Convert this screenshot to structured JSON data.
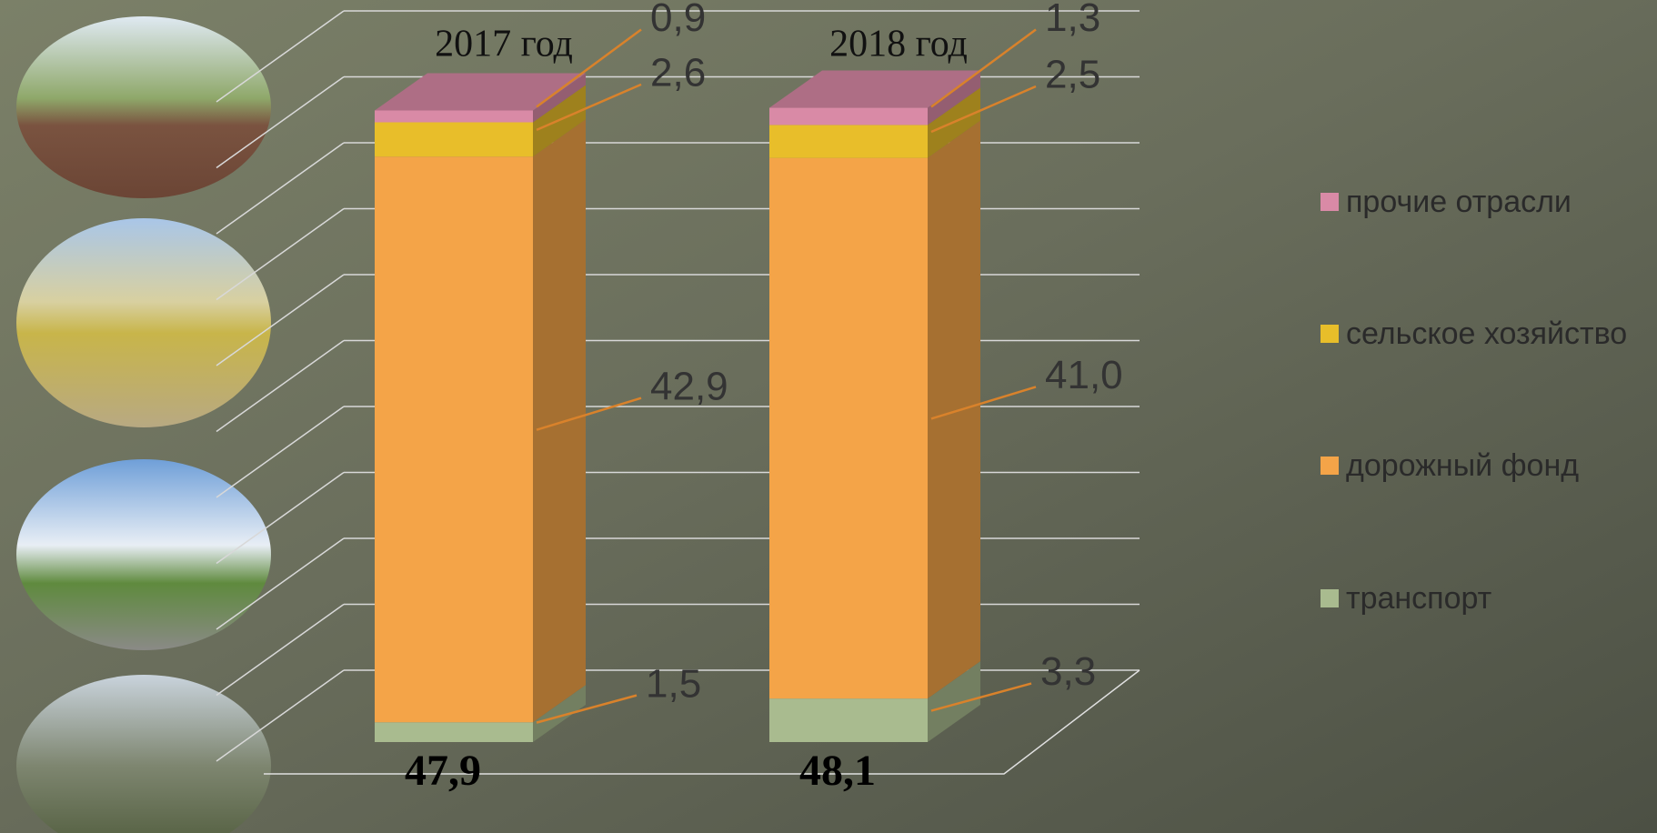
{
  "chart_data": {
    "type": "stacked-bar-3d",
    "categories": [
      "2017 год",
      "2018 год"
    ],
    "series": [
      {
        "name": "транспорт",
        "color": "#a9bb8f",
        "values": [
          1.5,
          3.3
        ],
        "value_labels": [
          "1,5",
          "3,3"
        ]
      },
      {
        "name": "дорожный фонд",
        "color": "#f4a448",
        "values": [
          42.9,
          41.0
        ],
        "value_labels": [
          "42,9",
          "41,0"
        ]
      },
      {
        "name": "сельское хозяйство",
        "color": "#e8be2a",
        "values": [
          2.6,
          2.5
        ],
        "value_labels": [
          "2,6",
          "2,5"
        ]
      },
      {
        "name": "прочие отрасли",
        "color": "#d98aa6",
        "values": [
          0.9,
          1.3
        ],
        "value_labels": [
          "0,9",
          "1,3"
        ]
      }
    ],
    "totals": {
      "values": [
        47.9,
        48.1
      ],
      "value_labels": [
        "47,9",
        "48,1"
      ]
    },
    "ylim": [
      0,
      50
    ],
    "yticks": [
      0,
      5,
      10,
      15,
      20,
      25,
      30,
      35,
      40,
      45,
      50
    ],
    "grid": true
  }
}
